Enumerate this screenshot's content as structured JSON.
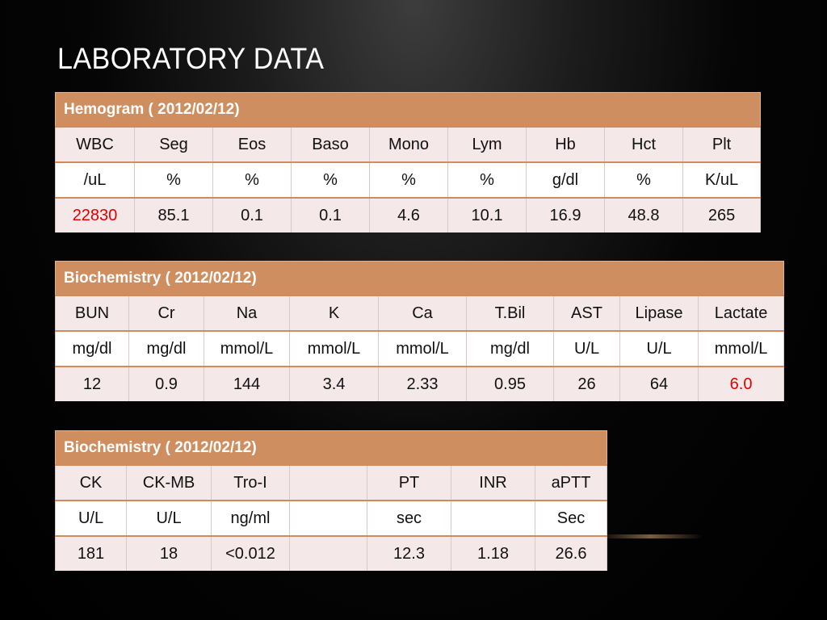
{
  "slide": {
    "title": "LABORATORY DATA"
  },
  "tables": [
    {
      "header": "Hemogram ( 2012/02/12)",
      "names": [
        "WBC",
        "Seg",
        "Eos",
        "Baso",
        "Mono",
        "Lym",
        "Hb",
        "Hct",
        "Plt"
      ],
      "units": [
        "/uL",
        "%",
        "%",
        "%",
        "%",
        "%",
        "g/dl",
        "%",
        "K/uL"
      ],
      "values": [
        "22830",
        "85.1",
        "0.1",
        "0.1",
        "4.6",
        "10.1",
        "16.9",
        "48.8",
        "265"
      ],
      "highlight_color": "#e00000"
    },
    {
      "header": "Biochemistry ( 2012/02/12)",
      "names": [
        "BUN",
        "Cr",
        "Na",
        "K",
        "Ca",
        "T.Bil",
        "AST",
        "Lipase",
        "Lactate"
      ],
      "units": [
        "mg/dl",
        "mg/dl",
        "mmol/L",
        "mmol/L",
        "mmol/L",
        "mg/dl",
        "U/L",
        "U/L",
        "mmol/L"
      ],
      "values": [
        "12",
        "0.9",
        "144",
        "3.4",
        "2.33",
        "0.95",
        "26",
        "64",
        "6.0"
      ],
      "highlight_color": "#e00000"
    },
    {
      "header": "Biochemistry ( 2012/02/12)",
      "names": [
        "CK",
        "CK-MB",
        "Tro-I",
        "",
        "PT",
        "INR",
        "aPTT"
      ],
      "units": [
        "U/L",
        "U/L",
        "ng/ml",
        "",
        "sec",
        "",
        "Sec"
      ],
      "values": [
        "181",
        "18",
        "<0.012",
        "",
        "12.3",
        "1.18",
        "26.6"
      ]
    }
  ],
  "colors": {
    "header_bg": "#cf8e5f",
    "row_light": "#f4e8e8",
    "row_white": "#ffffff",
    "abnormal": "#e00000"
  }
}
